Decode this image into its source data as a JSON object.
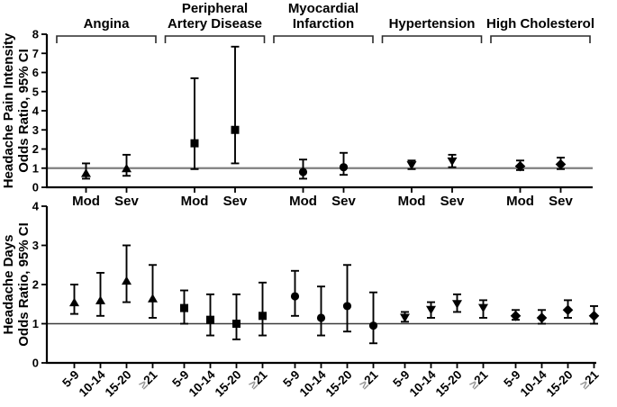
{
  "figure": {
    "background_color": "#ffffff",
    "ink_color": "#000000",
    "reference_line_color_top": "#7f7f7f",
    "reference_line_color_bottom": "#3c3c3c",
    "gte_symbol_color": "#979797"
  },
  "chart_data": [
    {
      "id": "headache-pain-intensity",
      "type": "scatter",
      "subtype": "forest-errorbar",
      "ylabel_lines": [
        "Headache Pain Intensity",
        "Odds Ratio, 95% CI"
      ],
      "ylim": [
        0,
        8
      ],
      "yticks": [
        0,
        1,
        2,
        3,
        4,
        5,
        6,
        7,
        8
      ],
      "reference_line_y": 1,
      "grid": "off",
      "categories": [
        "Mod",
        "Sev"
      ],
      "groups": [
        {
          "label": "Angina",
          "label_lines": [
            "Angina"
          ],
          "marker": "triangle-up",
          "points": [
            {
              "category": "Mod",
              "or": 0.75,
              "ci_low": 0.45,
              "ci_high": 1.25
            },
            {
              "category": "Sev",
              "or": 1.0,
              "ci_low": 0.6,
              "ci_high": 1.7
            }
          ]
        },
        {
          "label": "Peripheral Artery Disease",
          "label_lines": [
            "Peripheral",
            "Artery Disease"
          ],
          "marker": "square",
          "points": [
            {
              "category": "Mod",
              "or": 2.3,
              "ci_low": 0.95,
              "ci_high": 5.7
            },
            {
              "category": "Sev",
              "or": 3.0,
              "ci_low": 1.25,
              "ci_high": 7.35
            }
          ]
        },
        {
          "label": "Myocardial Infarction",
          "label_lines": [
            "Myocardial",
            "Infarction"
          ],
          "marker": "circle",
          "points": [
            {
              "category": "Mod",
              "or": 0.8,
              "ci_low": 0.45,
              "ci_high": 1.45
            },
            {
              "category": "Sev",
              "or": 1.05,
              "ci_low": 0.65,
              "ci_high": 1.8
            }
          ]
        },
        {
          "label": "Hypertension",
          "label_lines": [
            "Hypertension"
          ],
          "marker": "triangle-down",
          "points": [
            {
              "category": "Mod",
              "or": 1.15,
              "ci_low": 0.95,
              "ci_high": 1.4
            },
            {
              "category": "Sev",
              "or": 1.35,
              "ci_low": 1.05,
              "ci_high": 1.7
            }
          ]
        },
        {
          "label": "High Cholesterol",
          "label_lines": [
            "High Cholesterol"
          ],
          "marker": "diamond",
          "points": [
            {
              "category": "Mod",
              "or": 1.1,
              "ci_low": 0.9,
              "ci_high": 1.4
            },
            {
              "category": "Sev",
              "or": 1.2,
              "ci_low": 0.95,
              "ci_high": 1.55
            }
          ]
        }
      ]
    },
    {
      "id": "headache-days",
      "type": "scatter",
      "subtype": "forest-errorbar",
      "ylabel_lines": [
        "Headache Days",
        "Odds Ratio, 95% CI"
      ],
      "ylim": [
        0,
        4
      ],
      "yticks": [
        0,
        1,
        2,
        3,
        4
      ],
      "reference_line_y": 1,
      "grid": "off",
      "categories": [
        "5-9",
        "10-14",
        "15-20",
        "≥21"
      ],
      "xtick_label_rotation_deg": 45,
      "groups": [
        {
          "label": "Angina",
          "marker": "triangle-up",
          "points": [
            {
              "category": "5-9",
              "or": 1.55,
              "ci_low": 1.25,
              "ci_high": 2.0
            },
            {
              "category": "10-14",
              "or": 1.6,
              "ci_low": 1.2,
              "ci_high": 2.3
            },
            {
              "category": "15-20",
              "or": 2.1,
              "ci_low": 1.55,
              "ci_high": 3.0
            },
            {
              "category": "≥21",
              "or": 1.65,
              "ci_low": 1.15,
              "ci_high": 2.5
            }
          ]
        },
        {
          "label": "Peripheral Artery Disease",
          "marker": "square",
          "points": [
            {
              "category": "5-9",
              "or": 1.4,
              "ci_low": 1.0,
              "ci_high": 1.85
            },
            {
              "category": "10-14",
              "or": 1.1,
              "ci_low": 0.7,
              "ci_high": 1.75
            },
            {
              "category": "15-20",
              "or": 1.0,
              "ci_low": 0.6,
              "ci_high": 1.75
            },
            {
              "category": "≥21",
              "or": 1.2,
              "ci_low": 0.7,
              "ci_high": 2.05
            }
          ]
        },
        {
          "label": "Myocardial Infarction",
          "marker": "circle",
          "points": [
            {
              "category": "5-9",
              "or": 1.7,
              "ci_low": 1.2,
              "ci_high": 2.35
            },
            {
              "category": "10-14",
              "or": 1.15,
              "ci_low": 0.7,
              "ci_high": 1.95
            },
            {
              "category": "15-20",
              "or": 1.45,
              "ci_low": 0.8,
              "ci_high": 2.5
            },
            {
              "category": "≥21",
              "or": 0.95,
              "ci_low": 0.5,
              "ci_high": 1.8
            }
          ]
        },
        {
          "label": "Hypertension",
          "marker": "triangle-down",
          "points": [
            {
              "category": "5-9",
              "or": 1.15,
              "ci_low": 1.05,
              "ci_high": 1.3
            },
            {
              "category": "10-14",
              "or": 1.35,
              "ci_low": 1.15,
              "ci_high": 1.55
            },
            {
              "category": "15-20",
              "or": 1.5,
              "ci_low": 1.3,
              "ci_high": 1.75
            },
            {
              "category": "≥21",
              "or": 1.4,
              "ci_low": 1.15,
              "ci_high": 1.6
            }
          ]
        },
        {
          "label": "High Cholesterol",
          "marker": "diamond",
          "points": [
            {
              "category": "5-9",
              "or": 1.2,
              "ci_low": 1.1,
              "ci_high": 1.35
            },
            {
              "category": "10-14",
              "or": 1.15,
              "ci_low": 1.0,
              "ci_high": 1.35
            },
            {
              "category": "15-20",
              "or": 1.35,
              "ci_low": 1.15,
              "ci_high": 1.6
            },
            {
              "category": "≥21",
              "or": 1.2,
              "ci_low": 1.0,
              "ci_high": 1.45
            }
          ]
        }
      ]
    }
  ]
}
